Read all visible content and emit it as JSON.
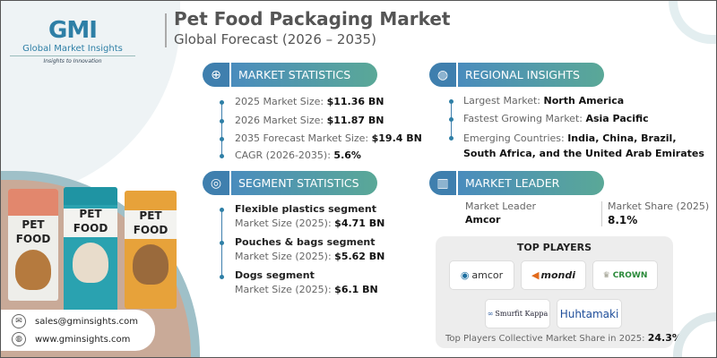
{
  "brand": {
    "logo_mark": "GMI",
    "name": "Global Market Insights",
    "tagline": "Insights to Innovation"
  },
  "header": {
    "title": "Pet Food Packaging Market",
    "subtitle": "Global Forecast (2026 – 2035)"
  },
  "market_statistics": {
    "heading": "MARKET STATISTICS",
    "icon": "globe-chart-icon",
    "items": [
      {
        "label": "2025 Market Size: ",
        "value": "$11.36 BN"
      },
      {
        "label": "2026 Market Size: ",
        "value": "$11.87 BN"
      },
      {
        "label": "2035 Forecast Market Size: ",
        "value": "$19.4 BN"
      },
      {
        "label": "CAGR (2026-2035): ",
        "value": "5.6%"
      }
    ]
  },
  "segment_statistics": {
    "heading": "SEGMENT STATISTICS",
    "icon": "target-chart-icon",
    "items": [
      {
        "name": "Flexible plastics segment",
        "label": "Market Size (2025): ",
        "value": "$4.71 BN"
      },
      {
        "name": "Pouches & bags segment",
        "label": "Market Size (2025): ",
        "value": "$5.62 BN"
      },
      {
        "name": "Dogs segment",
        "label": "Market Size (2025): ",
        "value": "$6.1 BN"
      }
    ]
  },
  "regional_insights": {
    "heading": "REGIONAL INSIGHTS",
    "icon": "globe-icon",
    "items": [
      {
        "label": "Largest Market: ",
        "value": "North America"
      },
      {
        "label": "Fastest Growing Market: ",
        "value": "Asia Pacific"
      },
      {
        "label": "Emerging Countries:  ",
        "value": "India, China, Brazil, South Africa, and the United Arab Emirates"
      }
    ]
  },
  "market_leader": {
    "heading": "MARKET LEADER",
    "icon": "bar-chart-icon",
    "leader_label": "Market Leader",
    "leader": "Amcor",
    "share_label": "Market Share (2025)",
    "share": "8.1%"
  },
  "top_players": {
    "heading": "TOP PLAYERS",
    "logos": [
      "amcor",
      "mondi",
      "CROWN",
      "Smurfit Kappa",
      "Huhtamaki"
    ],
    "footer_label": "Top Players Collective Market Share in 2025: ",
    "footer_value": "24.3%"
  },
  "product_image": {
    "bag_text": [
      "PET",
      "FOOD"
    ]
  },
  "contact": {
    "email": "sales@gminsights.com",
    "website": "www.gminsights.com"
  },
  "colors": {
    "accent_blue": "#3f7fae",
    "accent_teal": "#5aa897",
    "title_gray": "#555555"
  }
}
